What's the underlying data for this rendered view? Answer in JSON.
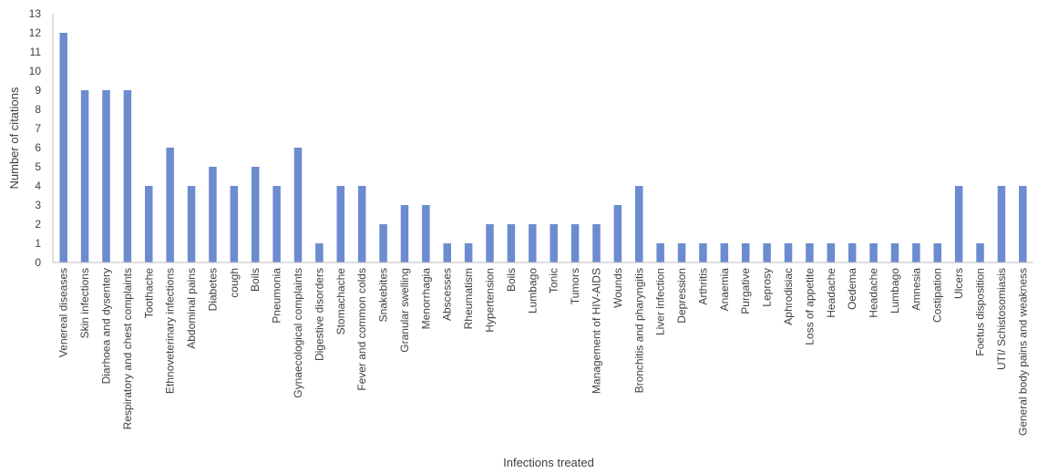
{
  "chart_data": {
    "type": "bar",
    "xlabel": "Infections treated",
    "ylabel": "Number of citations",
    "ylim": [
      0,
      13
    ],
    "yticks": [
      0,
      1,
      2,
      3,
      4,
      5,
      6,
      7,
      8,
      9,
      10,
      11,
      12,
      13
    ],
    "grid": false,
    "bar_color": "#6b8cce",
    "categories": [
      "Venereal diseases",
      "Skin infections",
      "Diarhoea and dysentery",
      "Respiratory and chest complaints",
      "Toothache",
      "Ethnoveterinary infections",
      "Abdominal pains",
      "Diabetes",
      "cough",
      "Boils",
      "Pneumonia",
      "Gynaecological complaints",
      "Digestive disorders",
      "Stomachache",
      "Fever and common colds",
      "Snakebites",
      "Granular swelling",
      "Menorrhagia",
      "Abscesses",
      "Rheumatism",
      "Hypertension",
      "Boils",
      "Lumbago",
      "Tonic",
      "Tumors",
      "Management of HIV-AIDS",
      "Wounds",
      "Bronchitis and pharyngitis",
      "Liver infection",
      "Depression",
      "Arthritis",
      "Anaemia",
      "Purgative",
      "Leprosy",
      "Aphrodisiac",
      "Loss of appetite",
      "Headache",
      "Oedema",
      "Headache",
      "Lumbago",
      "Amnesia",
      "Costipation",
      "Ulcers",
      "Foetus disposition",
      "UTI/ Schistosomiasis",
      "General body pains and weakness"
    ],
    "values": [
      12,
      9,
      9,
      9,
      4,
      6,
      4,
      5,
      4,
      5,
      4,
      6,
      1,
      4,
      4,
      2,
      3,
      3,
      1,
      1,
      2,
      2,
      2,
      2,
      2,
      2,
      3,
      4,
      1,
      1,
      1,
      1,
      1,
      1,
      1,
      1,
      1,
      1,
      1,
      1,
      1,
      1,
      4,
      1,
      4,
      4
    ]
  }
}
